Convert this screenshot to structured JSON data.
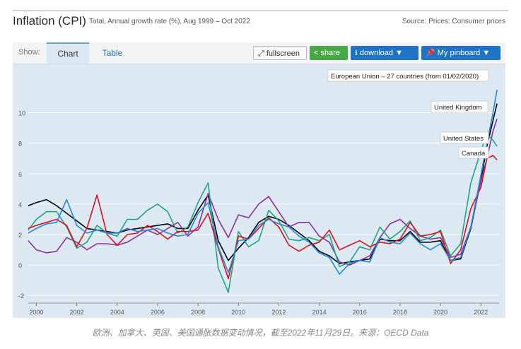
{
  "header": {
    "title": "Inflation (CPI)",
    "subtitle": "Total, Annual growth rate (%), Aug 1999 – Oct 2022",
    "source": "Source: Prices: Consumer prices"
  },
  "toolbar": {
    "show_label": "Show:",
    "tab_chart": "Chart",
    "tab_table": "Table",
    "fullscreen_label": "fullscreen",
    "share_label": "share",
    "download_label": "download ▼",
    "pinboard_label": "My pinboard ▼",
    "icons": [
      "expand-icon",
      "share-icon",
      "download-icon",
      "pin-icon"
    ]
  },
  "caption": "欧洲、加拿大、英国、美国通胀数据变动情况，截至2022年11月29日。来源：OECD Data",
  "chart_data": {
    "type": "line",
    "title": "Inflation (CPI)",
    "ylim": [
      -2.5,
      13
    ],
    "xlim": [
      1999.6,
      2022.9
    ],
    "y_ticks": [
      -2,
      0,
      2,
      4,
      6,
      8,
      10
    ],
    "x_ticks": [
      2000,
      2002,
      2004,
      2006,
      2008,
      2010,
      2012,
      2014,
      2016,
      2018,
      2020,
      2022
    ],
    "grid": true,
    "series": [
      {
        "name": "European Union – 27 countries (from 01/02/2020)",
        "color": "#000000",
        "x": [
          1999.6,
          2000.0,
          2000.5,
          2001.0,
          2001.5,
          2002.0,
          2002.5,
          2003.0,
          2003.5,
          2004.0,
          2004.5,
          2005.0,
          2005.5,
          2006.0,
          2006.5,
          2007.0,
          2007.5,
          2008.0,
          2008.5,
          2009.0,
          2009.5,
          2010.0,
          2010.5,
          2011.0,
          2011.5,
          2012.0,
          2012.5,
          2013.0,
          2013.5,
          2014.0,
          2014.5,
          2015.0,
          2015.5,
          2016.0,
          2016.5,
          2017.0,
          2017.5,
          2018.0,
          2018.5,
          2019.0,
          2019.5,
          2020.0,
          2020.5,
          2021.0,
          2021.5,
          2022.0,
          2022.3,
          2022.6,
          2022.8
        ],
        "values": [
          3.9,
          4.1,
          4.3,
          3.9,
          3.4,
          2.9,
          2.4,
          2.3,
          2.2,
          2.1,
          2.3,
          2.4,
          2.5,
          2.6,
          2.7,
          2.4,
          2.4,
          3.6,
          4.6,
          1.6,
          0.3,
          1.1,
          1.8,
          2.8,
          3.2,
          3.0,
          2.6,
          2.1,
          1.6,
          0.9,
          0.6,
          0.1,
          0.2,
          0.3,
          0.4,
          1.7,
          1.6,
          1.6,
          2.2,
          1.5,
          1.5,
          1.6,
          0.3,
          0.4,
          2.4,
          5.6,
          7.8,
          9.5,
          10.6
        ]
      },
      {
        "name": "United Kingdom",
        "color": "#8b2fa8",
        "x": [
          1999.6,
          2000.0,
          2000.5,
          2001.0,
          2001.5,
          2002.0,
          2002.5,
          2003.0,
          2003.5,
          2004.0,
          2004.5,
          2005.0,
          2005.5,
          2006.0,
          2006.5,
          2007.0,
          2007.5,
          2008.0,
          2008.5,
          2009.0,
          2009.5,
          2010.0,
          2010.5,
          2011.0,
          2011.5,
          2012.0,
          2012.5,
          2013.0,
          2013.5,
          2014.0,
          2014.5,
          2015.0,
          2015.5,
          2016.0,
          2016.5,
          2017.0,
          2017.5,
          2018.0,
          2018.5,
          2019.0,
          2019.5,
          2020.0,
          2020.5,
          2021.0,
          2021.5,
          2022.0,
          2022.3,
          2022.6,
          2022.8
        ],
        "values": [
          1.6,
          1.0,
          0.8,
          0.9,
          1.8,
          1.5,
          1.0,
          1.4,
          1.4,
          1.3,
          1.5,
          1.9,
          2.3,
          2.0,
          2.4,
          2.8,
          1.9,
          2.5,
          4.7,
          3.0,
          1.8,
          3.3,
          3.1,
          4.0,
          4.5,
          3.5,
          2.5,
          2.8,
          2.8,
          1.9,
          1.5,
          0.2,
          0.0,
          0.3,
          0.6,
          1.8,
          2.7,
          3.0,
          2.4,
          1.9,
          1.7,
          1.8,
          0.5,
          0.7,
          2.5,
          5.5,
          7.0,
          8.8,
          9.6
        ]
      },
      {
        "name": "United States",
        "color": "#1fa57e",
        "x": [
          1999.6,
          2000.0,
          2000.5,
          2001.0,
          2001.5,
          2002.0,
          2002.5,
          2003.0,
          2003.5,
          2004.0,
          2004.5,
          2005.0,
          2005.5,
          2006.0,
          2006.5,
          2007.0,
          2007.5,
          2008.0,
          2008.5,
          2009.0,
          2009.5,
          2010.0,
          2010.5,
          2011.0,
          2011.5,
          2012.0,
          2012.5,
          2013.0,
          2013.5,
          2014.0,
          2014.5,
          2015.0,
          2015.5,
          2016.0,
          2016.5,
          2017.0,
          2017.5,
          2018.0,
          2018.5,
          2019.0,
          2019.5,
          2020.0,
          2020.5,
          2021.0,
          2021.5,
          2022.0,
          2022.3,
          2022.6,
          2022.8
        ],
        "values": [
          2.3,
          3.0,
          3.5,
          3.5,
          2.5,
          1.1,
          1.5,
          2.6,
          2.1,
          1.9,
          3.0,
          3.0,
          3.6,
          4.0,
          3.5,
          2.1,
          2.5,
          4.1,
          5.4,
          -0.2,
          -1.8,
          2.2,
          1.2,
          1.6,
          3.6,
          2.9,
          1.7,
          1.6,
          1.8,
          1.6,
          2.0,
          -0.1,
          0.2,
          1.2,
          1.0,
          2.5,
          1.7,
          2.2,
          2.9,
          1.6,
          1.8,
          2.3,
          0.6,
          1.4,
          5.4,
          7.5,
          8.6,
          8.2,
          7.8
        ]
      },
      {
        "name": "Canada",
        "color": "#e0101a",
        "x": [
          1999.6,
          2000.0,
          2000.5,
          2001.0,
          2001.5,
          2002.0,
          2002.5,
          2003.0,
          2003.5,
          2004.0,
          2004.5,
          2005.0,
          2005.5,
          2006.0,
          2006.5,
          2007.0,
          2007.5,
          2008.0,
          2008.5,
          2009.0,
          2009.5,
          2010.0,
          2010.5,
          2011.0,
          2011.5,
          2012.0,
          2012.5,
          2013.0,
          2013.5,
          2014.0,
          2014.5,
          2015.0,
          2015.5,
          2016.0,
          2016.5,
          2017.0,
          2017.5,
          2018.0,
          2018.5,
          2019.0,
          2019.5,
          2020.0,
          2020.5,
          2021.0,
          2021.5,
          2022.0,
          2022.3,
          2022.6,
          2022.8
        ],
        "values": [
          2.4,
          2.6,
          2.8,
          3.0,
          2.6,
          1.2,
          2.4,
          4.6,
          2.0,
          1.3,
          2.0,
          2.1,
          2.6,
          2.2,
          1.7,
          2.2,
          2.2,
          2.3,
          3.4,
          1.1,
          -0.9,
          1.9,
          1.7,
          2.4,
          3.1,
          2.5,
          1.3,
          0.9,
          1.3,
          1.5,
          2.3,
          1.0,
          1.3,
          1.6,
          1.2,
          1.5,
          1.4,
          1.7,
          2.8,
          1.9,
          2.0,
          2.2,
          0.1,
          1.0,
          3.7,
          5.1,
          7.0,
          7.2,
          6.9
        ]
      },
      {
        "name": "",
        "color": "#2288dd",
        "x": [
          1999.6,
          2000.0,
          2000.5,
          2001.0,
          2001.5,
          2002.0,
          2002.5,
          2003.0,
          2003.5,
          2004.0,
          2004.5,
          2005.0,
          2005.5,
          2006.0,
          2006.5,
          2007.0,
          2007.5,
          2008.0,
          2008.5,
          2009.0,
          2009.5,
          2010.0,
          2010.5,
          2011.0,
          2011.5,
          2012.0,
          2012.5,
          2013.0,
          2013.5,
          2014.0,
          2014.5,
          2015.0,
          2015.5,
          2016.0,
          2016.5,
          2017.0,
          2017.5,
          2018.0,
          2018.5,
          2019.0,
          2019.5,
          2020.0,
          2020.5,
          2021.0,
          2021.5,
          2022.0,
          2022.3,
          2022.6,
          2022.8
        ],
        "values": [
          2.1,
          2.4,
          2.7,
          2.8,
          4.3,
          2.6,
          2.1,
          2.3,
          2.1,
          2.1,
          2.4,
          2.2,
          2.3,
          2.4,
          2.1,
          1.9,
          2.0,
          3.4,
          4.1,
          1.2,
          -0.5,
          1.6,
          1.7,
          2.6,
          3.0,
          2.7,
          2.5,
          1.9,
          1.5,
          0.8,
          0.5,
          -0.6,
          0.1,
          0.3,
          0.2,
          1.8,
          1.5,
          1.4,
          2.1,
          1.4,
          1.0,
          1.4,
          0.3,
          0.5,
          2.5,
          5.9,
          8.0,
          10.0,
          11.5
        ]
      }
    ],
    "labels": [
      "European Union – 27 countries (from 01/02/2020)",
      "United Kingdom",
      "United States",
      "Canada"
    ]
  }
}
